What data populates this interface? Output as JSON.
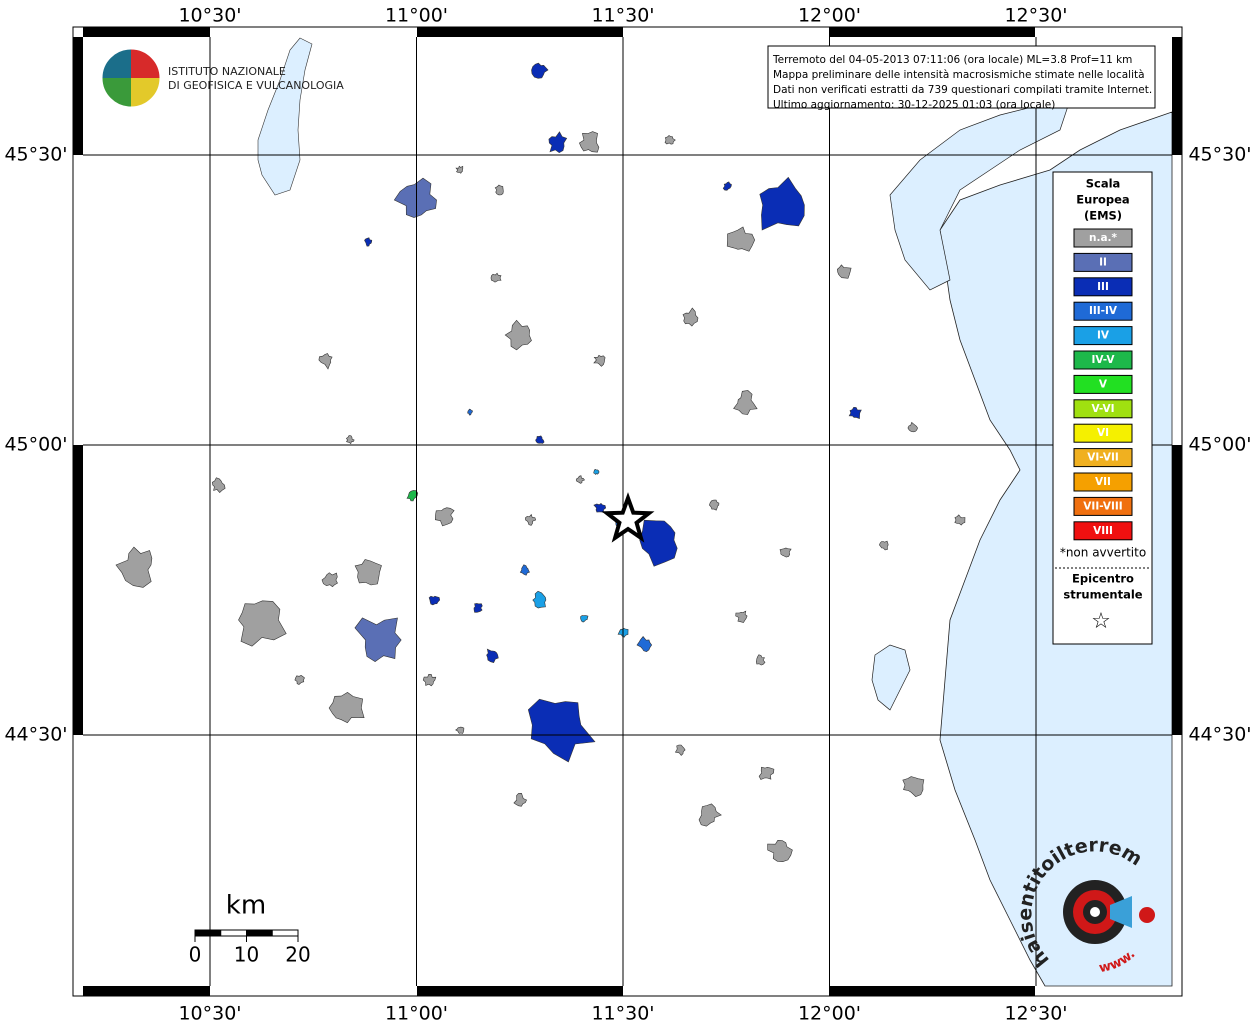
{
  "logo": {
    "line1": "ISTITUTO NAZIONALE",
    "line2": "DI GEOFISICA E VULCANOLOGIA"
  },
  "info": [
    "Terremoto del 04-05-2013 07:11:06 (ora locale) ML=3.8 Prof=11 km",
    "Mappa preliminare delle intensità macrosismiche stimate nelle località",
    "Dati non verificati estratti da 739 questionari compilati tramite Internet.",
    "Ultimo aggiornamento: 30-12-2025 01:03 (ora locale)"
  ],
  "lon_ticks": [
    {
      "value": 10.5,
      "label": "10°30'"
    },
    {
      "value": 11,
      "label": "11°00'"
    },
    {
      "value": 11.5,
      "label": "11°30'"
    },
    {
      "value": 12,
      "label": "12°00'"
    },
    {
      "value": 12.5,
      "label": "12°30'"
    }
  ],
  "lat_ticks": [
    {
      "value": 45.5,
      "label": "45°30'"
    },
    {
      "value": 45,
      "label": "45°00'"
    },
    {
      "value": 44.5,
      "label": "44°30'"
    }
  ],
  "legend": {
    "title": [
      "Scala",
      "Europea",
      "(EMS)"
    ],
    "items": [
      {
        "label": "n.a.*",
        "color": "#a0a0a0"
      },
      {
        "label": "II",
        "color": "#5a6fb5"
      },
      {
        "label": "III",
        "color": "#0a2db5"
      },
      {
        "label": "III-IV",
        "color": "#1f6ad6"
      },
      {
        "label": "IV",
        "color": "#1aa0e6"
      },
      {
        "label": "IV-V",
        "color": "#1db84a"
      },
      {
        "label": "V",
        "color": "#22e022"
      },
      {
        "label": "V-VI",
        "color": "#a0e010"
      },
      {
        "label": "VI",
        "color": "#f5f000"
      },
      {
        "label": "VI-VII",
        "color": "#f0b020"
      },
      {
        "label": "VII",
        "color": "#f5a000"
      },
      {
        "label": "VII-VIII",
        "color": "#f07010"
      },
      {
        "label": "VIII",
        "color": "#f01010"
      }
    ],
    "note": "*non avvertito",
    "epicenter": [
      "Epicentro",
      "strumentale"
    ],
    "star": "☆"
  },
  "scale": {
    "unit": "km",
    "ticks": [
      0,
      10,
      20
    ]
  },
  "badge": {
    "text": "haisentitoilterremoto.it",
    "prefix": "www."
  }
}
